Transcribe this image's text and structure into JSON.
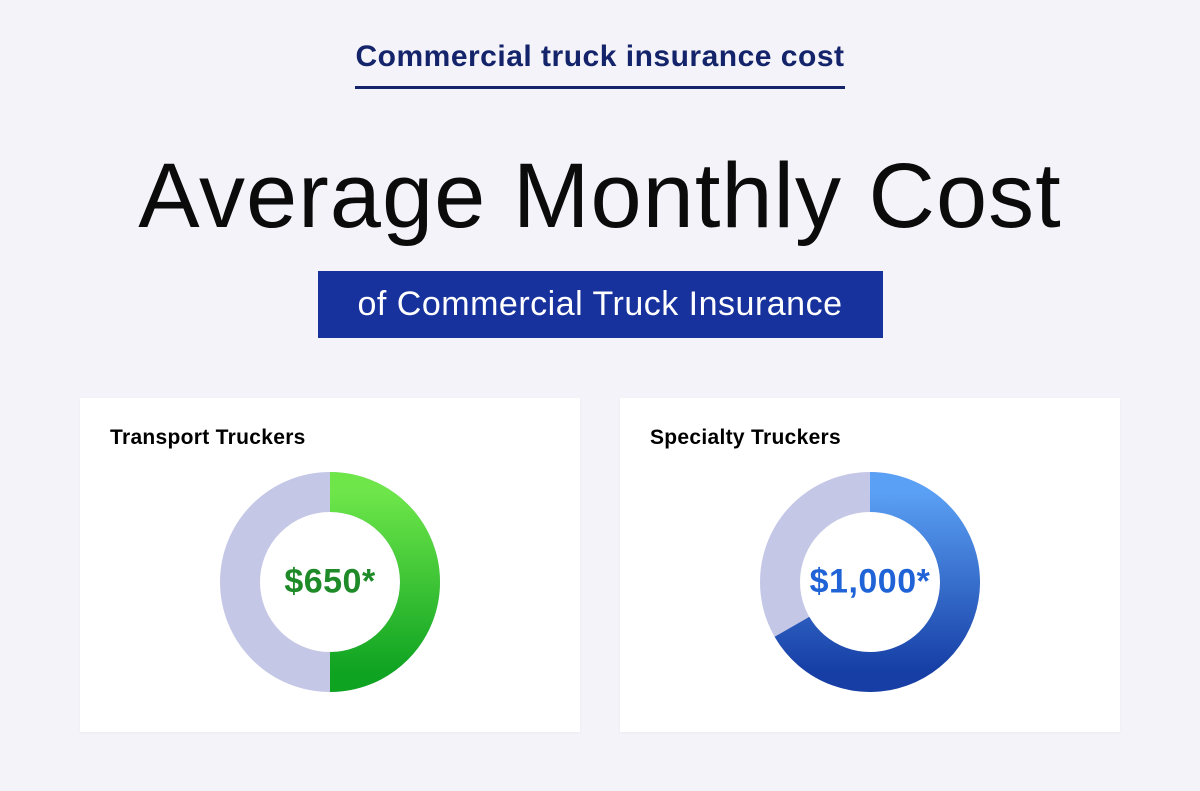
{
  "colors": {
    "page_bg": "#f4f3f9",
    "subtitle_text": "#14246b",
    "underline": "#14246b",
    "main_title": "#0b0b0b",
    "banner_bg": "#17329d",
    "banner_text": "#ffffff",
    "card_bg": "#ffffff",
    "card_title": "#0b0b0b"
  },
  "text": {
    "subtitle": "Commercial truck insurance cost",
    "main_title": "Average Monthly Cost",
    "banner": "of Commercial Truck Insurance"
  },
  "cards": [
    {
      "title": "Transport Truckers",
      "value_label": "$650*",
      "value_color": "#1e8a28",
      "donut": {
        "size": 220,
        "thickness": 40,
        "remainder_color": "#c5c7e6",
        "percent": 50,
        "gradient_from": "#6ee64a",
        "gradient_to": "#0fa322",
        "start_angle_deg": 0
      }
    },
    {
      "title": "Specialty Truckers",
      "value_label": "$1,000*",
      "value_color": "#1f63d6",
      "donut": {
        "size": 220,
        "thickness": 40,
        "remainder_color": "#c5c7e6",
        "percent": 66.7,
        "gradient_from": "#5aa0f4",
        "gradient_to": "#163ea5",
        "start_angle_deg": 0
      }
    }
  ]
}
